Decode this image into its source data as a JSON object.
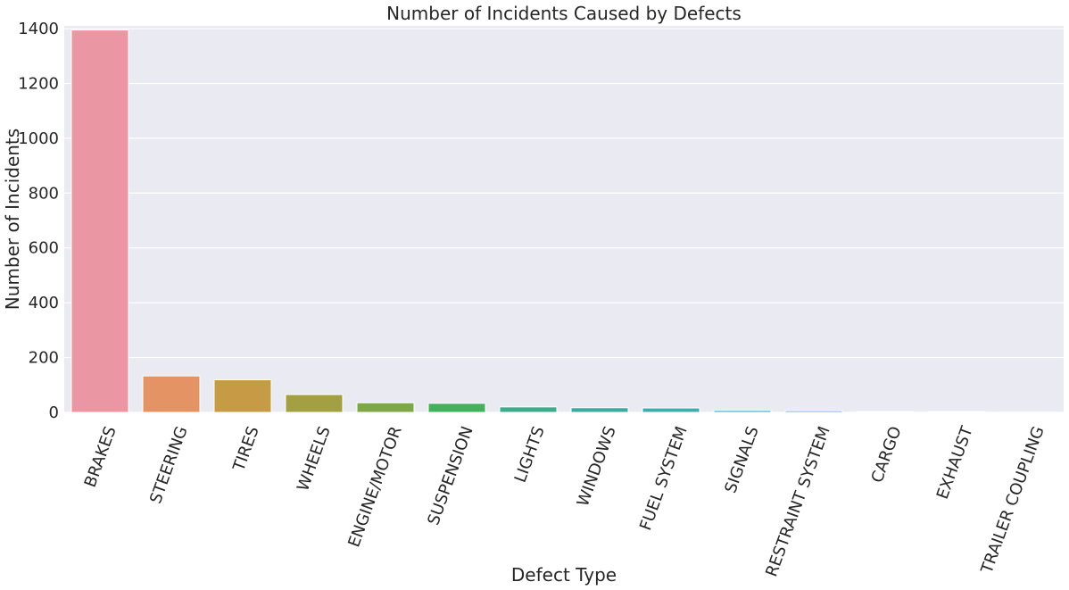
{
  "chart_data": {
    "type": "bar",
    "title": "Number of Incidents Caused by Defects",
    "xlabel": "Defect Type",
    "ylabel": "Number of Incidents",
    "ylim": [
      0,
      1410
    ],
    "yticks": [
      0,
      200,
      400,
      600,
      800,
      1000,
      1200,
      1400
    ],
    "grid": true,
    "background": "#EAEAF2",
    "categories": [
      "BRAKES",
      "STEERING",
      "TIRES",
      "WHEELS",
      "ENGINE/MOTOR",
      "SUSPENSION",
      "LIGHTS",
      "WINDOWS",
      "FUEL SYSTEM",
      "SIGNALS",
      "RESTRAINT SYSTEM",
      "CARGO",
      "EXHAUST",
      "TRAILER COUPLING"
    ],
    "values": [
      1395,
      133,
      119,
      65,
      35,
      33,
      20,
      17,
      16,
      7,
      6,
      3,
      3,
      1
    ],
    "colors": [
      "#EA96A3",
      "#E49365",
      "#C69B45",
      "#A3A043",
      "#7EA845",
      "#45AF5E",
      "#3FA98C",
      "#3DAA9D",
      "#40ACAD",
      "#43AAC7",
      "#71A0E7",
      "#A993EA",
      "#D990E9",
      "#EB91C7"
    ]
  }
}
